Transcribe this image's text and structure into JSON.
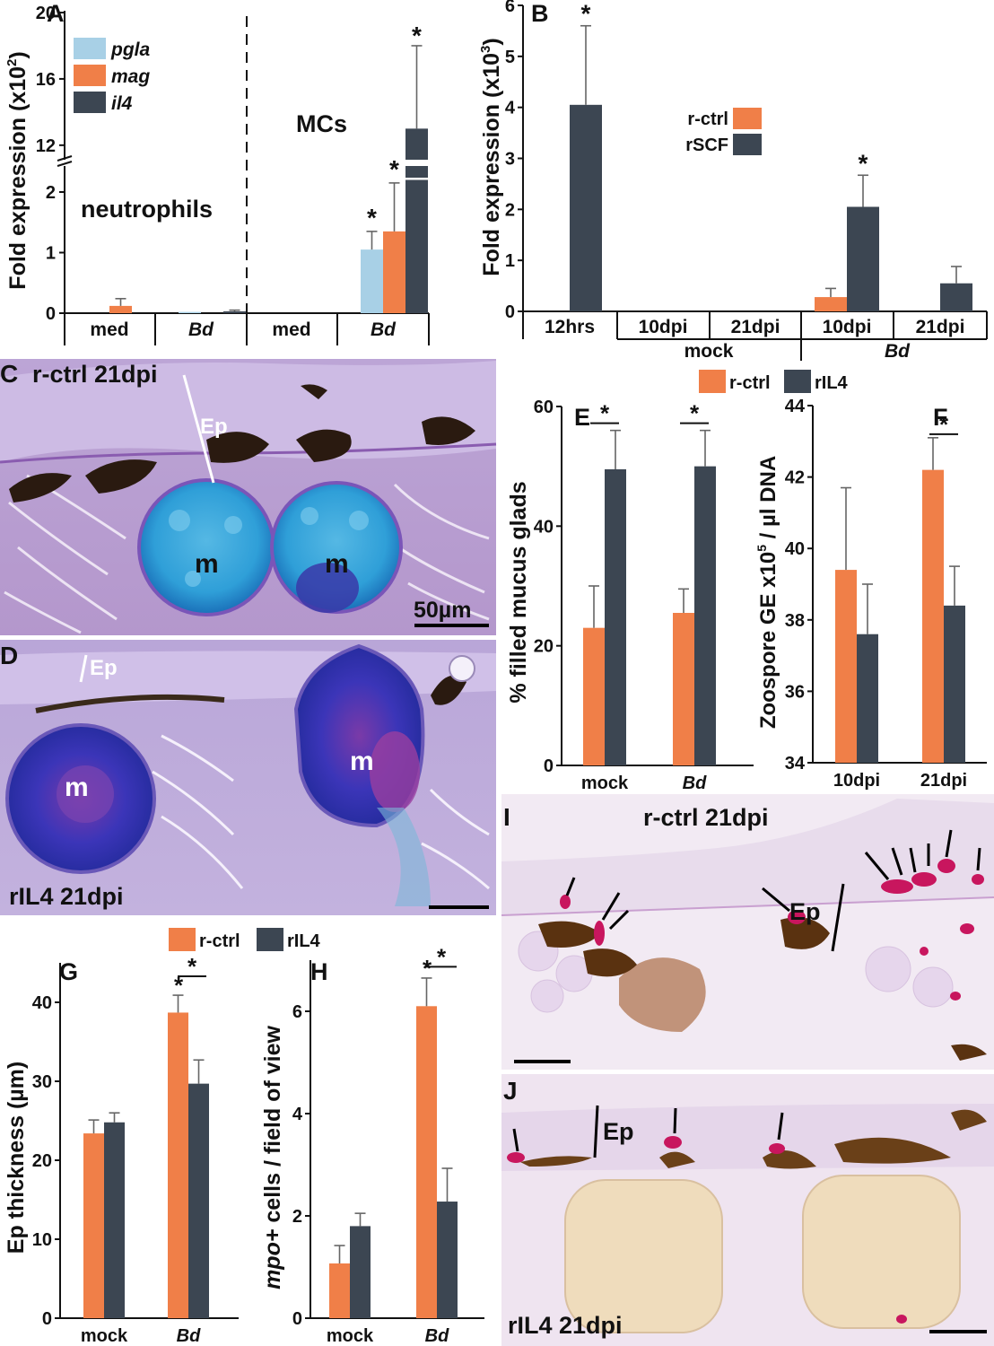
{
  "colors": {
    "pgla": "#a8d0e6",
    "mag": "#f07f48",
    "il4": "#3c4652",
    "r_ctrl": "#f07f48",
    "dark": "#3c4652",
    "bar_outline": "#222222"
  },
  "panel_labels": {
    "A": "A",
    "B": "B",
    "C": "C",
    "D": "D",
    "E": "E",
    "F": "F",
    "G": "G",
    "H": "H",
    "I": "I",
    "J": "J"
  },
  "sig_mark": "*",
  "chart_data": [
    {
      "panel": "A",
      "type": "bar",
      "ylabel": "Fold expression (x10²)",
      "ylabel_main": "Fold expression (x10",
      "ylabel_sup": "2",
      "ylabel_tail": ")",
      "axis_break": {
        "lower": [
          0,
          2.2
        ],
        "upper": [
          10.8,
          20
        ]
      },
      "lower_ticks": [
        "0",
        "1",
        "2"
      ],
      "upper_ticks": [
        "12",
        "16",
        "20"
      ],
      "group_labels": [
        "neutrophils",
        "MCs"
      ],
      "categories": [
        "med",
        "Bd",
        "med",
        "Bd"
      ],
      "legend": [
        "pgla",
        "mag",
        "il4"
      ],
      "series": [
        {
          "name": "pgla",
          "values": [
            0,
            0.02,
            0,
            1.05
          ],
          "errors": [
            0,
            0,
            0,
            0.3
          ]
        },
        {
          "name": "mag",
          "values": [
            0.12,
            0,
            0,
            1.35
          ],
          "errors": [
            0.12,
            0,
            0,
            0.8
          ]
        },
        {
          "name": "il4",
          "values": [
            0,
            0.03,
            0,
            13.0
          ],
          "errors": [
            0,
            0.02,
            0,
            5.0
          ]
        }
      ],
      "significant": [
        "MCs Bd pgla",
        "MCs Bd mag",
        "MCs Bd il4"
      ]
    },
    {
      "panel": "B",
      "type": "bar",
      "ylabel_main": "Fold expression (x10",
      "ylabel_sup": "3",
      "ylabel_tail": ")",
      "ylim": [
        0,
        6
      ],
      "yticks": [
        "0",
        "1",
        "2",
        "3",
        "4",
        "5",
        "6"
      ],
      "categories": [
        "12hrs",
        "10dpi",
        "21dpi",
        "10dpi",
        "21dpi"
      ],
      "group_labels": [
        "mock",
        "Bd"
      ],
      "legend": [
        "r-ctrl",
        "rSCF"
      ],
      "series": [
        {
          "name": "r-ctrl",
          "values": [
            0,
            0,
            0,
            0.28,
            0
          ],
          "errors": [
            0,
            0,
            0,
            0.17,
            0
          ]
        },
        {
          "name": "rSCF",
          "values": [
            4.05,
            0,
            0,
            2.05,
            0.55
          ],
          "errors": [
            1.55,
            0,
            0,
            0.62,
            0.33
          ]
        }
      ],
      "significant": [
        "12hrs rSCF",
        "Bd 10dpi rSCF"
      ]
    },
    {
      "panel": "E",
      "type": "bar",
      "ylabel": "% filled mucus glads",
      "ylim": [
        0,
        60
      ],
      "yticks": [
        "0",
        "20",
        "40",
        "60"
      ],
      "categories": [
        "mock",
        "Bd"
      ],
      "legend": [
        "r-ctrl",
        "rIL4"
      ],
      "series": [
        {
          "name": "r-ctrl",
          "values": [
            23,
            25.5
          ],
          "errors": [
            7,
            4
          ]
        },
        {
          "name": "rIL4",
          "values": [
            49.5,
            50
          ],
          "errors": [
            6.5,
            6
          ]
        }
      ],
      "significant": [
        "mock",
        "Bd"
      ]
    },
    {
      "panel": "F",
      "type": "bar",
      "ylabel_main": "Zoospore GE x10",
      "ylabel_sup": "5",
      "ylabel_tail": " / µl DNA",
      "ylim": [
        34,
        44
      ],
      "yticks": [
        "34",
        "36",
        "38",
        "40",
        "42",
        "44"
      ],
      "categories": [
        "10dpi",
        "21dpi"
      ],
      "legend": [
        "r-ctrl",
        "rIL4"
      ],
      "series": [
        {
          "name": "r-ctrl",
          "values": [
            39.4,
            42.2
          ],
          "errors": [
            2.3,
            0.9
          ]
        },
        {
          "name": "rIL4",
          "values": [
            37.6,
            38.4
          ],
          "errors": [
            1.4,
            1.1
          ]
        }
      ],
      "significant": [
        "21dpi"
      ]
    },
    {
      "panel": "G",
      "type": "bar",
      "ylabel": "Ep thickness (µm)",
      "ylim": [
        0,
        45
      ],
      "yticks": [
        "0",
        "10",
        "20",
        "30",
        "40"
      ],
      "categories": [
        "mock",
        "Bd"
      ],
      "legend": [
        "r-ctrl",
        "rIL4"
      ],
      "series": [
        {
          "name": "r-ctrl",
          "values": [
            23.4,
            38.7
          ],
          "errors": [
            1.7,
            2.2
          ]
        },
        {
          "name": "rIL4",
          "values": [
            24.8,
            29.7
          ],
          "errors": [
            1.2,
            3.0
          ]
        }
      ],
      "significant": [
        "Bd r-ctrl",
        "Bd"
      ]
    },
    {
      "panel": "H",
      "type": "bar",
      "ylabel_it": "mpo+",
      "ylabel_rest": " cells / field of view",
      "ylim": [
        0,
        7
      ],
      "yticks": [
        "0",
        "2",
        "4",
        "6"
      ],
      "categories": [
        "mock",
        "Bd"
      ],
      "series": [
        {
          "name": "r-ctrl",
          "values": [
            1.07,
            6.1
          ],
          "errors": [
            0.35,
            0.55
          ]
        },
        {
          "name": "rIL4",
          "values": [
            1.8,
            2.28
          ],
          "errors": [
            0.25,
            0.65
          ]
        }
      ],
      "significant": [
        "Bd r-ctrl",
        "Bd"
      ]
    }
  ],
  "micrographs": {
    "C": {
      "title": "r-ctrl 21dpi",
      "ep": "Ep",
      "gland": "m",
      "scale": "50µm"
    },
    "D": {
      "title": "rIL4 21dpi",
      "ep": "Ep",
      "gland": "m"
    },
    "I": {
      "title": "r-ctrl 21dpi",
      "ep": "Ep"
    },
    "J": {
      "title": "rIL4 21dpi",
      "ep": "Ep"
    }
  }
}
